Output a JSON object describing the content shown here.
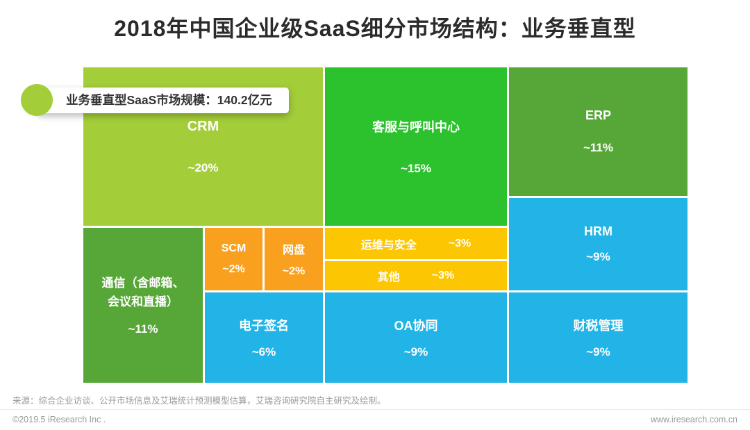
{
  "title": "2018年中国企业级SaaS细分市场结构：业务垂直型",
  "badge": {
    "label": "业务垂直型SaaS市场规模：140.2亿元",
    "dot_color": "#a3cd39"
  },
  "chart_data": {
    "type": "treemap",
    "title": "2018年中国企业级SaaS细分市场结构：业务垂直型",
    "total_label": "业务垂直型SaaS市场规模：140.2亿元",
    "total_value": 140.2,
    "total_unit": "亿元",
    "items": [
      {
        "name": "CRM",
        "share": "~20%",
        "value": 20,
        "color": "#a3cd39"
      },
      {
        "name": "客服与呼叫中心",
        "share": "~15%",
        "value": 15,
        "color": "#2bc22d"
      },
      {
        "name": "ERP",
        "share": "~11%",
        "value": 11,
        "color": "#57a638"
      },
      {
        "name": "HRM",
        "share": "~9%",
        "value": 9,
        "color": "#22b4e6"
      },
      {
        "name": "通信（含邮箱、会议和直播）",
        "share": "~11%",
        "value": 11,
        "color": "#57a638",
        "name_lines": [
          "通信（含邮箱、",
          "会议和直播）"
        ]
      },
      {
        "name": "SCM",
        "share": "~2%",
        "value": 2,
        "color": "#f9a01e"
      },
      {
        "name": "网盘",
        "share": "~2%",
        "value": 2,
        "color": "#f9a01e"
      },
      {
        "name": "运维与安全",
        "share": "~3%",
        "value": 3,
        "color": "#fdc603"
      },
      {
        "name": "其他",
        "share": "~3%",
        "value": 3,
        "color": "#fdc603"
      },
      {
        "name": "电子签名",
        "share": "~6%",
        "value": 6,
        "color": "#22b4e6"
      },
      {
        "name": "OA协同",
        "share": "~9%",
        "value": 9,
        "color": "#22b4e6"
      },
      {
        "name": "财税管理",
        "share": "~9%",
        "value": 9,
        "color": "#22b4e6"
      }
    ]
  },
  "footer": {
    "source": "来源：综合企业访谈、公开市场信息及艾瑞统计预测模型估算，艾瑞咨询研究院自主研究及绘制。",
    "copyright": "©2019.5 iResearch Inc .",
    "website": "www.iresearch.com.cn"
  }
}
